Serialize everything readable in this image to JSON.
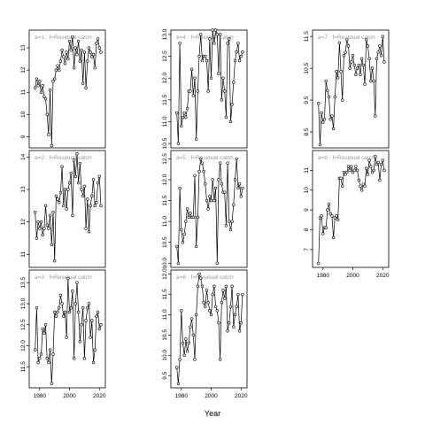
{
  "chart_data": {
    "type": "line",
    "xlabel": "Year",
    "ylabel": "",
    "layout": {
      "cols": 3,
      "rows": 3,
      "column_major": true
    },
    "xlim": [
      1973,
      2024
    ],
    "xticks": [
      1980,
      2000,
      2020
    ],
    "shared_x_axis_rows": [
      1,
      2
    ],
    "point_marker": "open-circle",
    "line_color": "#000000",
    "panels": [
      {
        "label": "a=1 : f=Residual catch",
        "ylim": [
          8.5,
          13.8
        ],
        "yticks": [
          9,
          10,
          11,
          12,
          13
        ],
        "x": [
          1977,
          1978,
          1979,
          1980,
          1981,
          1982,
          1983,
          1984,
          1985,
          1986,
          1987,
          1988,
          1989,
          1990,
          1991,
          1992,
          1993,
          1994,
          1995,
          1996,
          1997,
          1998,
          1999,
          2000,
          2001,
          2002,
          2003,
          2004,
          2005,
          2006,
          2007,
          2008,
          2009,
          2010,
          2011,
          2012,
          2013,
          2014,
          2015,
          2016,
          2017,
          2018,
          2019,
          2020,
          2021
        ],
        "values": [
          11.2,
          11.6,
          11.3,
          11.5,
          11.0,
          11.3,
          10.8,
          10.7,
          10.0,
          9.1,
          11.1,
          8.6,
          11.5,
          11.6,
          12.0,
          12.2,
          12.0,
          12.4,
          12.9,
          12.6,
          12.3,
          12.8,
          12.5,
          13.3,
          12.9,
          13.5,
          12.1,
          13.0,
          12.7,
          13.3,
          12.4,
          12.9,
          11.4,
          12.8,
          11.2,
          12.4,
          13.0,
          12.8,
          12.6,
          12.7,
          12.1,
          13.2,
          13.4,
          13.0,
          12.8
        ]
      },
      {
        "label": "a=2 : f=Residual catch",
        "ylim": [
          10.6,
          14.2
        ],
        "yticks": [
          11,
          12,
          13,
          14
        ],
        "x": [
          1977,
          1978,
          1979,
          1980,
          1981,
          1982,
          1983,
          1984,
          1985,
          1986,
          1987,
          1988,
          1989,
          1990,
          1991,
          1992,
          1993,
          1994,
          1995,
          1996,
          1997,
          1998,
          1999,
          2000,
          2001,
          2002,
          2003,
          2004,
          2005,
          2006,
          2007,
          2008,
          2009,
          2010,
          2011,
          2012,
          2013,
          2014,
          2015,
          2016,
          2017,
          2018,
          2019,
          2020,
          2021
        ],
        "values": [
          12.3,
          11.5,
          12.0,
          11.8,
          12.0,
          11.6,
          11.8,
          12.5,
          11.9,
          11.8,
          12.2,
          11.3,
          12.3,
          10.8,
          12.8,
          12.7,
          12.6,
          12.9,
          13.7,
          12.5,
          13.0,
          12.4,
          13.0,
          13.2,
          13.5,
          12.2,
          13.9,
          13.4,
          14.1,
          13.2,
          13.8,
          13.0,
          12.8,
          13.1,
          11.8,
          12.7,
          11.7,
          12.5,
          12.8,
          13.3,
          12.5,
          12.6,
          13.2,
          13.4,
          12.5
        ]
      },
      {
        "label": "a=3 : f=Residual catch",
        "ylim": [
          11.0,
          13.8
        ],
        "yticks": [
          11.5,
          12.0,
          12.5,
          13.0,
          13.5
        ],
        "x": [
          1977,
          1978,
          1979,
          1980,
          1981,
          1982,
          1983,
          1984,
          1985,
          1986,
          1987,
          1988,
          1989,
          1990,
          1991,
          1992,
          1993,
          1994,
          1995,
          1996,
          1997,
          1998,
          1999,
          2000,
          2001,
          2002,
          2003,
          2004,
          2005,
          2006,
          2007,
          2008,
          2009,
          2010,
          2011,
          2012,
          2013,
          2014,
          2015,
          2016,
          2017,
          2018,
          2019,
          2020,
          2021
        ],
        "values": [
          11.9,
          12.9,
          11.6,
          11.7,
          11.8,
          12.4,
          12.3,
          12.5,
          11.7,
          11.6,
          11.9,
          11.1,
          11.8,
          12.8,
          12.7,
          12.8,
          12.9,
          13.2,
          13.0,
          12.7,
          12.8,
          12.2,
          13.6,
          12.8,
          12.9,
          13.3,
          11.7,
          13.0,
          13.5,
          12.8,
          12.1,
          12.5,
          12.9,
          11.7,
          12.6,
          12.9,
          13.0,
          12.2,
          12.6,
          11.6,
          11.9,
          12.7,
          12.8,
          12.4,
          12.5
        ]
      },
      {
        "label": "a=4 : f=Residual catch",
        "ylim": [
          10.4,
          13.1
        ],
        "yticks": [
          10.5,
          11.0,
          11.5,
          12.0,
          12.5,
          13.0
        ],
        "x": [
          1977,
          1978,
          1979,
          1980,
          1981,
          1982,
          1983,
          1984,
          1985,
          1986,
          1987,
          1988,
          1989,
          1990,
          1991,
          1992,
          1993,
          1994,
          1995,
          1996,
          1997,
          1998,
          1999,
          2000,
          2001,
          2002,
          2003,
          2004,
          2005,
          2006,
          2007,
          2008,
          2009,
          2010,
          2011,
          2012,
          2013,
          2014,
          2015,
          2016,
          2017,
          2018,
          2019,
          2020,
          2021
        ],
        "values": [
          11.2,
          10.5,
          12.8,
          10.9,
          11.1,
          11.2,
          11.1,
          11.3,
          11.7,
          11.7,
          12.2,
          11.6,
          12.0,
          10.6,
          11.7,
          12.5,
          13.0,
          12.4,
          12.5,
          12.5,
          12.4,
          11.7,
          12.9,
          12.0,
          13.1,
          12.8,
          13.1,
          13.0,
          12.1,
          13.0,
          11.5,
          12.0,
          11.7,
          11.1,
          12.8,
          12.9,
          11.0,
          11.4,
          11.9,
          12.4,
          12.6,
          12.8,
          12.4,
          12.5,
          12.6
        ]
      },
      {
        "label": "a=5 : f=Residual catch",
        "ylim": [
          9.9,
          12.7
        ],
        "yticks": [
          10.0,
          10.5,
          11.0,
          11.5,
          12.0,
          12.5
        ],
        "x": [
          1977,
          1978,
          1979,
          1980,
          1981,
          1982,
          1983,
          1984,
          1985,
          1986,
          1987,
          1988,
          1989,
          1990,
          1991,
          1992,
          1993,
          1994,
          1995,
          1996,
          1997,
          1998,
          1999,
          2000,
          2001,
          2002,
          2003,
          2004,
          2005,
          2006,
          2007,
          2008,
          2009,
          2010,
          2011,
          2012,
          2013,
          2014,
          2015,
          2016,
          2017,
          2018,
          2019,
          2020,
          2021
        ],
        "values": [
          10.4,
          10.0,
          11.8,
          10.8,
          10.5,
          10.7,
          11.0,
          11.3,
          11.1,
          11.2,
          11.1,
          11.1,
          12.1,
          10.4,
          11.1,
          12.2,
          12.5,
          12.4,
          12.2,
          11.9,
          11.5,
          11.3,
          11.6,
          11.5,
          12.0,
          11.5,
          11.8,
          10.0,
          12.0,
          12.4,
          11.9,
          11.7,
          11.7,
          10.9,
          12.4,
          11.0,
          10.8,
          11.0,
          11.4,
          12.0,
          12.5,
          11.8,
          11.9,
          11.6,
          11.8
        ]
      },
      {
        "label": "a=6 : f=Residual catch",
        "ylim": [
          9.2,
          12.1
        ],
        "yticks": [
          9.5,
          10.0,
          10.5,
          11.0,
          11.5,
          12.0
        ],
        "x": [
          1977,
          1978,
          1979,
          1980,
          1981,
          1982,
          1983,
          1984,
          1985,
          1986,
          1987,
          1988,
          1989,
          1990,
          1991,
          1992,
          1993,
          1994,
          1995,
          1996,
          1997,
          1998,
          1999,
          2000,
          2001,
          2002,
          2003,
          2004,
          2005,
          2006,
          2007,
          2008,
          2009,
          2010,
          2011,
          2012,
          2013,
          2014,
          2015,
          2016,
          2017,
          2018,
          2019,
          2020,
          2021
        ],
        "values": [
          9.7,
          9.3,
          9.9,
          11.1,
          10.3,
          10.0,
          10.4,
          10.1,
          10.3,
          10.7,
          10.9,
          10.5,
          9.9,
          11.0,
          11.7,
          12.0,
          11.9,
          11.7,
          11.3,
          11.2,
          11.6,
          11.3,
          11.1,
          11.0,
          11.5,
          11.7,
          11.2,
          11.1,
          10.8,
          9.9,
          11.3,
          11.6,
          11.4,
          11.7,
          10.6,
          10.8,
          11.2,
          11.7,
          10.7,
          11.0,
          11.2,
          11.5,
          10.6,
          10.8,
          11.5
        ]
      },
      {
        "label": "a=7 : f=Residual catch",
        "ylim": [
          8.0,
          11.7
        ],
        "yticks": [
          8.5,
          9.5,
          10.5,
          11.5
        ],
        "x": [
          1977,
          1978,
          1979,
          1980,
          1981,
          1982,
          1983,
          1984,
          1985,
          1986,
          1987,
          1988,
          1989,
          1990,
          1991,
          1992,
          1993,
          1994,
          1995,
          1996,
          1997,
          1998,
          1999,
          2000,
          2001,
          2002,
          2003,
          2004,
          2005,
          2006,
          2007,
          2008,
          2009,
          2010,
          2011,
          2012,
          2013,
          2014,
          2015,
          2016,
          2017,
          2018,
          2019,
          2020,
          2021
        ],
        "values": [
          9.4,
          8.1,
          9.1,
          8.8,
          8.9,
          10.1,
          9.8,
          9.6,
          8.9,
          9.0,
          8.6,
          9.6,
          10.4,
          10.2,
          11.3,
          10.4,
          9.5,
          10.9,
          11.0,
          11.4,
          11.2,
          10.5,
          10.7,
          10.9,
          10.6,
          10.3,
          10.5,
          10.6,
          10.3,
          10.8,
          10.6,
          10.0,
          11.4,
          11.2,
          10.8,
          10.1,
          10.5,
          10.1,
          9.0,
          10.8,
          11.0,
          11.2,
          10.9,
          11.5,
          10.7
        ]
      },
      {
        "label": "a=8 : f=Residual catch",
        "ylim": [
          6.1,
          12.0
        ],
        "yticks": [
          7,
          8,
          9,
          10,
          11
        ],
        "x": [
          1977,
          1978,
          1979,
          1980,
          1981,
          1982,
          1983,
          1984,
          1985,
          1986,
          1987,
          1988,
          1989,
          1990,
          1991,
          1992,
          1993,
          1994,
          1995,
          1996,
          1997,
          1998,
          1999,
          2000,
          2001,
          2002,
          2003,
          2004,
          2005,
          2006,
          2007,
          2008,
          2009,
          2010,
          2011,
          2012,
          2013,
          2014,
          2015,
          2016,
          2017,
          2018,
          2019,
          2020,
          2021
        ],
        "values": [
          6.3,
          8.6,
          8.7,
          7.8,
          8.1,
          8.1,
          9.0,
          9.3,
          8.8,
          8.7,
          7.6,
          8.6,
          8.7,
          8.5,
          10.6,
          10.6,
          10.2,
          10.9,
          10.8,
          10.9,
          11.2,
          11.0,
          11.2,
          10.9,
          11.0,
          11.2,
          11.0,
          10.5,
          10.2,
          10.0,
          10.3,
          10.2,
          11.1,
          10.8,
          11.5,
          11.2,
          10.9,
          11.0,
          11.7,
          11.3,
          11.4,
          10.5,
          11.3,
          11.5,
          11.0
        ]
      }
    ]
  }
}
